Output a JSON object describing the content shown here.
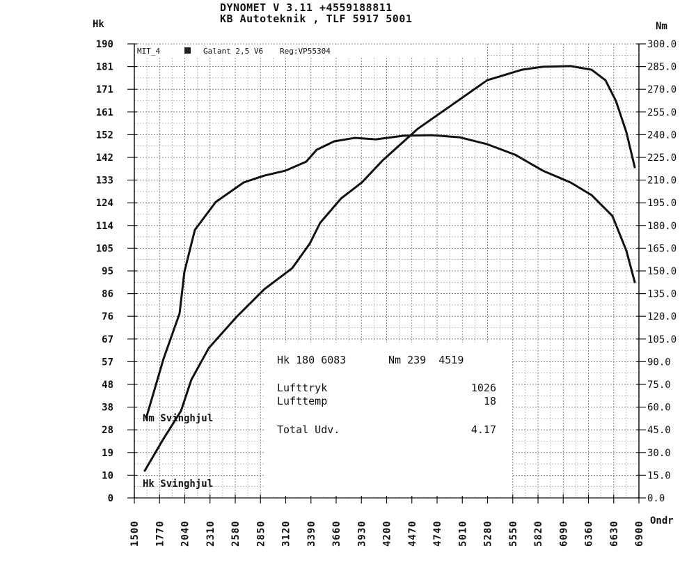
{
  "header": {
    "line1": "DYNOMET V 3.11 +4559188811",
    "line2": "KB Autoteknik , TLF 5917 5001"
  },
  "legend": {
    "run": "MIT_4",
    "vehicle": "Galant 2,5 V6",
    "reg": "Reg:VP55304"
  },
  "info_box": {
    "peak_hk": "Hk 180 6083",
    "peak_nm": "Nm 239  4519",
    "lufttryk_label": "Lufttryk",
    "lufttryk_value": "1026",
    "lufttemp_label": "Lufttemp",
    "lufttemp_value": "18",
    "total_label": "Total Udv.",
    "total_value": "4.17"
  },
  "chart_data": {
    "type": "line",
    "title": "DYNOMET V 3.11",
    "xlabel": "Ondr",
    "ylabel_left": "Hk",
    "ylabel_right": "Nm",
    "xlim": [
      1500,
      6900
    ],
    "ylim_left": [
      0,
      190
    ],
    "ylim_right": [
      0,
      300
    ],
    "grid": true,
    "x_ticks": [
      "1500",
      "1770",
      "2040",
      "2310",
      "2580",
      "2850",
      "3120",
      "3390",
      "3660",
      "3930",
      "4200",
      "4470",
      "4740",
      "5010",
      "5280",
      "5550",
      "5820",
      "6090",
      "6360",
      "6630",
      "6900"
    ],
    "y_ticks_left": [
      "0",
      "10",
      "19",
      "28",
      "38",
      "48",
      "57",
      "67",
      "76",
      "86",
      "95",
      "105",
      "114",
      "124",
      "133",
      "142",
      "152",
      "161",
      "171",
      "181",
      "190"
    ],
    "y_ticks_right": [
      "0.0",
      "15.0",
      "30.0",
      "45.0",
      "60.0",
      "75.0",
      "90.0",
      "105.0",
      "120.0",
      "135.0",
      "150.0",
      "165.0",
      "180.0",
      "195.0",
      "210.0",
      "225.0",
      "240.0",
      "255.0",
      "270.0",
      "285.0",
      "300.0"
    ],
    "series": [
      {
        "name": "Hk Svinghjul",
        "axis": "left",
        "x": [
          1612,
          1813,
          1999,
          2111,
          2297,
          2595,
          2893,
          3191,
          3377,
          3489,
          3712,
          3935,
          4159,
          4531,
          4904,
          5276,
          5649,
          5872,
          6170,
          6393,
          6542,
          6654,
          6766,
          6855
        ],
        "y": [
          11.4,
          24.8,
          36.4,
          49.5,
          62.7,
          75.8,
          87.4,
          96.2,
          106.4,
          115.1,
          125.3,
          132.0,
          141.3,
          154.4,
          164.6,
          174.8,
          179.2,
          180.4,
          180.7,
          179.2,
          174.8,
          166.1,
          153.0,
          138.4
        ]
      },
      {
        "name": "Nm Svinghjul",
        "axis": "right",
        "x": [
          1627,
          1813,
          1984,
          2036,
          2148,
          2371,
          2669,
          2893,
          3116,
          3340,
          3451,
          3638,
          3861,
          4084,
          4382,
          4680,
          4978,
          5276,
          5574,
          5872,
          6170,
          6393,
          6616,
          6766,
          6855
        ],
        "y": [
          52.9,
          92.0,
          121.9,
          149.5,
          177.1,
          195.5,
          208.4,
          213.0,
          216.2,
          222.2,
          230.0,
          235.6,
          237.9,
          236.9,
          239.3,
          239.7,
          238.3,
          233.7,
          226.8,
          216.2,
          208.4,
          200.1,
          186.3,
          163.3,
          142.6
        ]
      }
    ]
  }
}
